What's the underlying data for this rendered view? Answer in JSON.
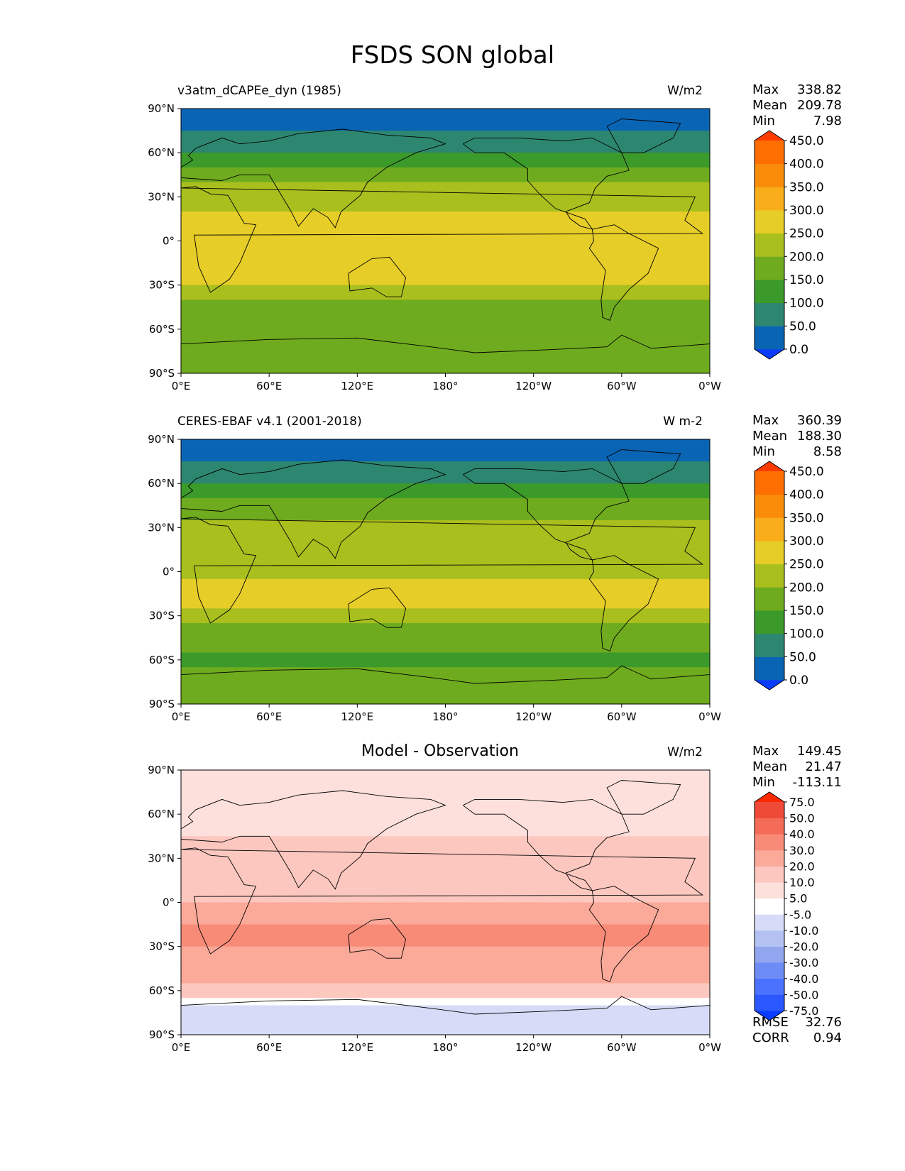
{
  "title": "FSDS SON global",
  "axes": {
    "lat_ticks": [
      "90°N",
      "60°N",
      "30°N",
      "0°",
      "30°S",
      "60°S",
      "90°S"
    ],
    "lon_ticks": [
      "0°E",
      "60°E",
      "120°E",
      "180°",
      "120°W",
      "60°W",
      "0°W"
    ]
  },
  "colors": {
    "abs": [
      "#0a3cff",
      "#0a64b4",
      "#2d8770",
      "#3c9a2a",
      "#6fab1e",
      "#a8bf1e",
      "#e6cd28",
      "#f9ad1a",
      "#fa8c0a",
      "#ff6e00",
      "#ff3c00"
    ],
    "diff": [
      "#0a3cff",
      "#2b57ff",
      "#4b72ff",
      "#6e8cf5",
      "#91a6ef",
      "#b4c2f2",
      "#d6dcf7",
      "#ffffff",
      "#fde0dc",
      "#fcc7bf",
      "#fba999",
      "#f88b78",
      "#f46b57",
      "#ee4a37",
      "#ff2a00"
    ]
  },
  "chart_data": [
    {
      "type": "heatmap",
      "name": "test",
      "subtitle": "v3atm_dCAPEe_dyn (1985)",
      "units": "W/m2",
      "stats": {
        "Max": "338.82",
        "Mean": "209.78",
        "Min": "7.98"
      },
      "colorbar": {
        "levels": [
          "0.0",
          "50.0",
          "100.0",
          "150.0",
          "200.0",
          "250.0",
          "300.0",
          "350.0",
          "400.0",
          "450.0"
        ],
        "extend": "both"
      },
      "xlim": [
        0,
        360
      ],
      "ylim": [
        -90,
        90
      ],
      "zonal_mean_by_lat": {
        "lat": [
          -90,
          -75,
          -60,
          -45,
          -30,
          -15,
          0,
          15,
          30,
          45,
          60,
          75,
          90
        ],
        "values": [
          170,
          170,
          155,
          185,
          255,
          285,
          265,
          255,
          235,
          170,
          105,
          45,
          20
        ]
      }
    },
    {
      "type": "heatmap",
      "name": "reference",
      "subtitle": "CERES-EBAF v4.1 (2001-2018)",
      "units": "W m-2",
      "stats": {
        "Max": "360.39",
        "Mean": "188.30",
        "Min": "8.58"
      },
      "colorbar": {
        "levels": [
          "0.0",
          "50.0",
          "100.0",
          "150.0",
          "200.0",
          "250.0",
          "300.0",
          "350.0",
          "400.0",
          "450.0"
        ],
        "extend": "both"
      },
      "xlim": [
        0,
        360
      ],
      "ylim": [
        -90,
        90
      ],
      "zonal_mean_by_lat": {
        "lat": [
          -90,
          -75,
          -60,
          -45,
          -30,
          -15,
          0,
          15,
          30,
          45,
          60,
          75,
          90
        ],
        "values": [
          175,
          175,
          140,
          160,
          235,
          265,
          245,
          240,
          225,
          160,
          100,
          40,
          15
        ]
      }
    },
    {
      "type": "heatmap",
      "name": "diff",
      "subtitle": "Model - Observation",
      "units": "W/m2",
      "stats": {
        "Max": "149.45",
        "Mean": "21.47",
        "Min": "-113.11"
      },
      "colorbar": {
        "levels": [
          "-75.0",
          "-50.0",
          "-40.0",
          "-30.0",
          "-20.0",
          "-10.0",
          "-5.0",
          "5.0",
          "10.0",
          "20.0",
          "30.0",
          "40.0",
          "50.0",
          "75.0"
        ],
        "extend": "both"
      },
      "metrics": {
        "RMSE": "32.76",
        "CORR": "0.94"
      },
      "xlim": [
        0,
        360
      ],
      "ylim": [
        -90,
        90
      ],
      "zonal_mean_by_lat": {
        "lat": [
          -90,
          -75,
          -60,
          -45,
          -30,
          -15,
          0,
          15,
          30,
          45,
          60,
          75,
          90
        ],
        "values": [
          -10,
          -10,
          15,
          25,
          30,
          30,
          20,
          15,
          10,
          10,
          5,
          5,
          5
        ]
      }
    }
  ]
}
